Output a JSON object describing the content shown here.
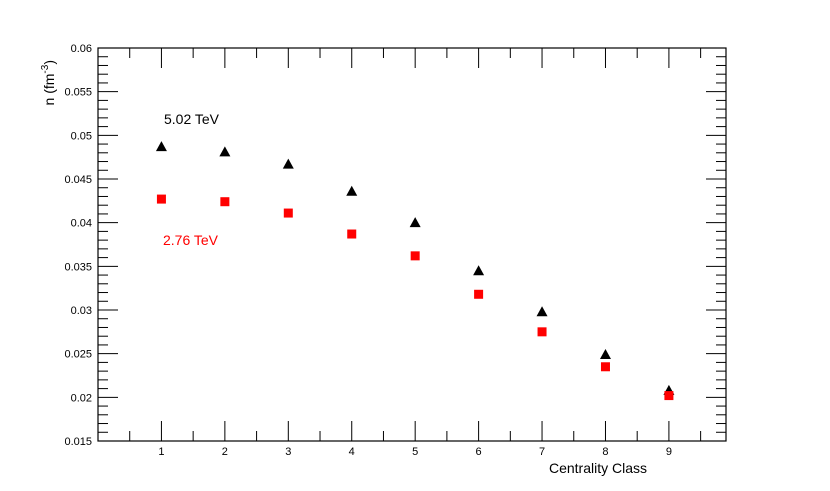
{
  "chart_data": {
    "type": "scatter",
    "title": "",
    "xlabel": "Centrality Class",
    "ylabel": "n (fm",
    "ylabel_sup": "-3",
    "ylabel_close": ")",
    "xlim": [
      0,
      9.9
    ],
    "ylim": [
      0.015,
      0.06
    ],
    "x_ticks": [
      1,
      2,
      3,
      4,
      5,
      6,
      7,
      8,
      9
    ],
    "x_tick_labels": [
      "1",
      "2",
      "3",
      "4",
      "5",
      "6",
      "7",
      "8",
      "9"
    ],
    "y_ticks": [
      0.015,
      0.02,
      0.025,
      0.03,
      0.035,
      0.04,
      0.045,
      0.05,
      0.055,
      0.06
    ],
    "y_tick_labels": [
      "0.015",
      "0.02",
      "0.025",
      "0.03",
      "0.035",
      "0.04",
      "0.045",
      "0.05",
      "0.055",
      "0.06"
    ],
    "grid": false,
    "series": [
      {
        "name": "5.02 TeV",
        "marker": "triangle",
        "color": "#000000",
        "x": [
          1,
          2,
          3,
          4,
          5,
          6,
          7,
          8,
          9
        ],
        "y": [
          0.0487,
          0.0481,
          0.0467,
          0.0436,
          0.04,
          0.0345,
          0.0298,
          0.0249,
          0.0208
        ]
      },
      {
        "name": "2.76 TeV",
        "marker": "square",
        "color": "#ff0000",
        "x": [
          1,
          2,
          3,
          4,
          5,
          6,
          7,
          8,
          9
        ],
        "y": [
          0.0427,
          0.0424,
          0.0411,
          0.0387,
          0.0362,
          0.0318,
          0.0275,
          0.0235,
          0.0202
        ]
      }
    ]
  }
}
